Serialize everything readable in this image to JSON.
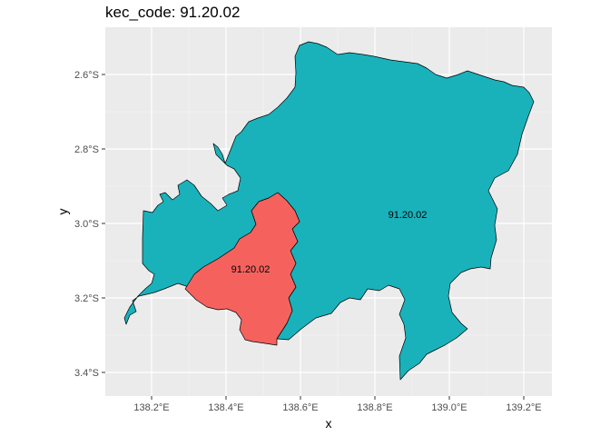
{
  "title": "kec_code: 91.20.02",
  "chart_data": {
    "type": "map",
    "title": "kec_code: 91.20.02",
    "xlabel": "x",
    "ylabel": "y",
    "x_ticks": [
      "138.2°E",
      "138.4°E",
      "138.6°E",
      "138.8°E",
      "139.0°E",
      "139.2°E"
    ],
    "y_ticks": [
      "2.6°S",
      "2.8°S",
      "3.0°S",
      "3.2°S",
      "3.4°S"
    ],
    "xlim": [
      138.08,
      139.3
    ],
    "ylim": [
      -3.47,
      -2.48
    ],
    "grid": true,
    "regions": [
      {
        "label": "91.20.02",
        "color": "#19b2bb",
        "label_lon": 138.84,
        "label_lat": -2.97
      },
      {
        "label": "91.20.02",
        "color": "#f5625e",
        "label_lon": 138.46,
        "label_lat": -3.12
      }
    ]
  }
}
